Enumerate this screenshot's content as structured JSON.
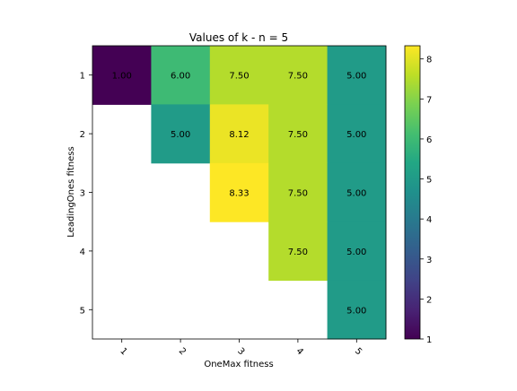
{
  "chart_data": {
    "type": "heatmap",
    "title": "Values of k - n = 5",
    "xlabel": "OneMax fitness",
    "ylabel": "LeadingOnes fitness",
    "x_categories": [
      "1",
      "2",
      "3",
      "4",
      "5"
    ],
    "y_categories": [
      "1",
      "2",
      "3",
      "4",
      "5"
    ],
    "values": [
      [
        1.0,
        6.0,
        7.5,
        7.5,
        5.0
      ],
      [
        null,
        5.0,
        8.12,
        7.5,
        5.0
      ],
      [
        null,
        null,
        8.33,
        7.5,
        5.0
      ],
      [
        null,
        null,
        null,
        7.5,
        5.0
      ],
      [
        null,
        null,
        null,
        null,
        5.0
      ]
    ],
    "cell_labels": [
      [
        "1.00",
        "6.00",
        "7.50",
        "7.50",
        "5.00"
      ],
      [
        null,
        "5.00",
        "8.12",
        "7.50",
        "5.00"
      ],
      [
        null,
        null,
        "8.33",
        "7.50",
        "5.00"
      ],
      [
        null,
        null,
        null,
        "7.50",
        "5.00"
      ],
      [
        null,
        null,
        null,
        null,
        "5.00"
      ]
    ],
    "colormap": "viridis",
    "color_range": [
      1.0,
      8.33
    ],
    "colorbar_ticks": [
      "1",
      "2",
      "3",
      "4",
      "5",
      "6",
      "7",
      "8"
    ],
    "grid": false
  }
}
